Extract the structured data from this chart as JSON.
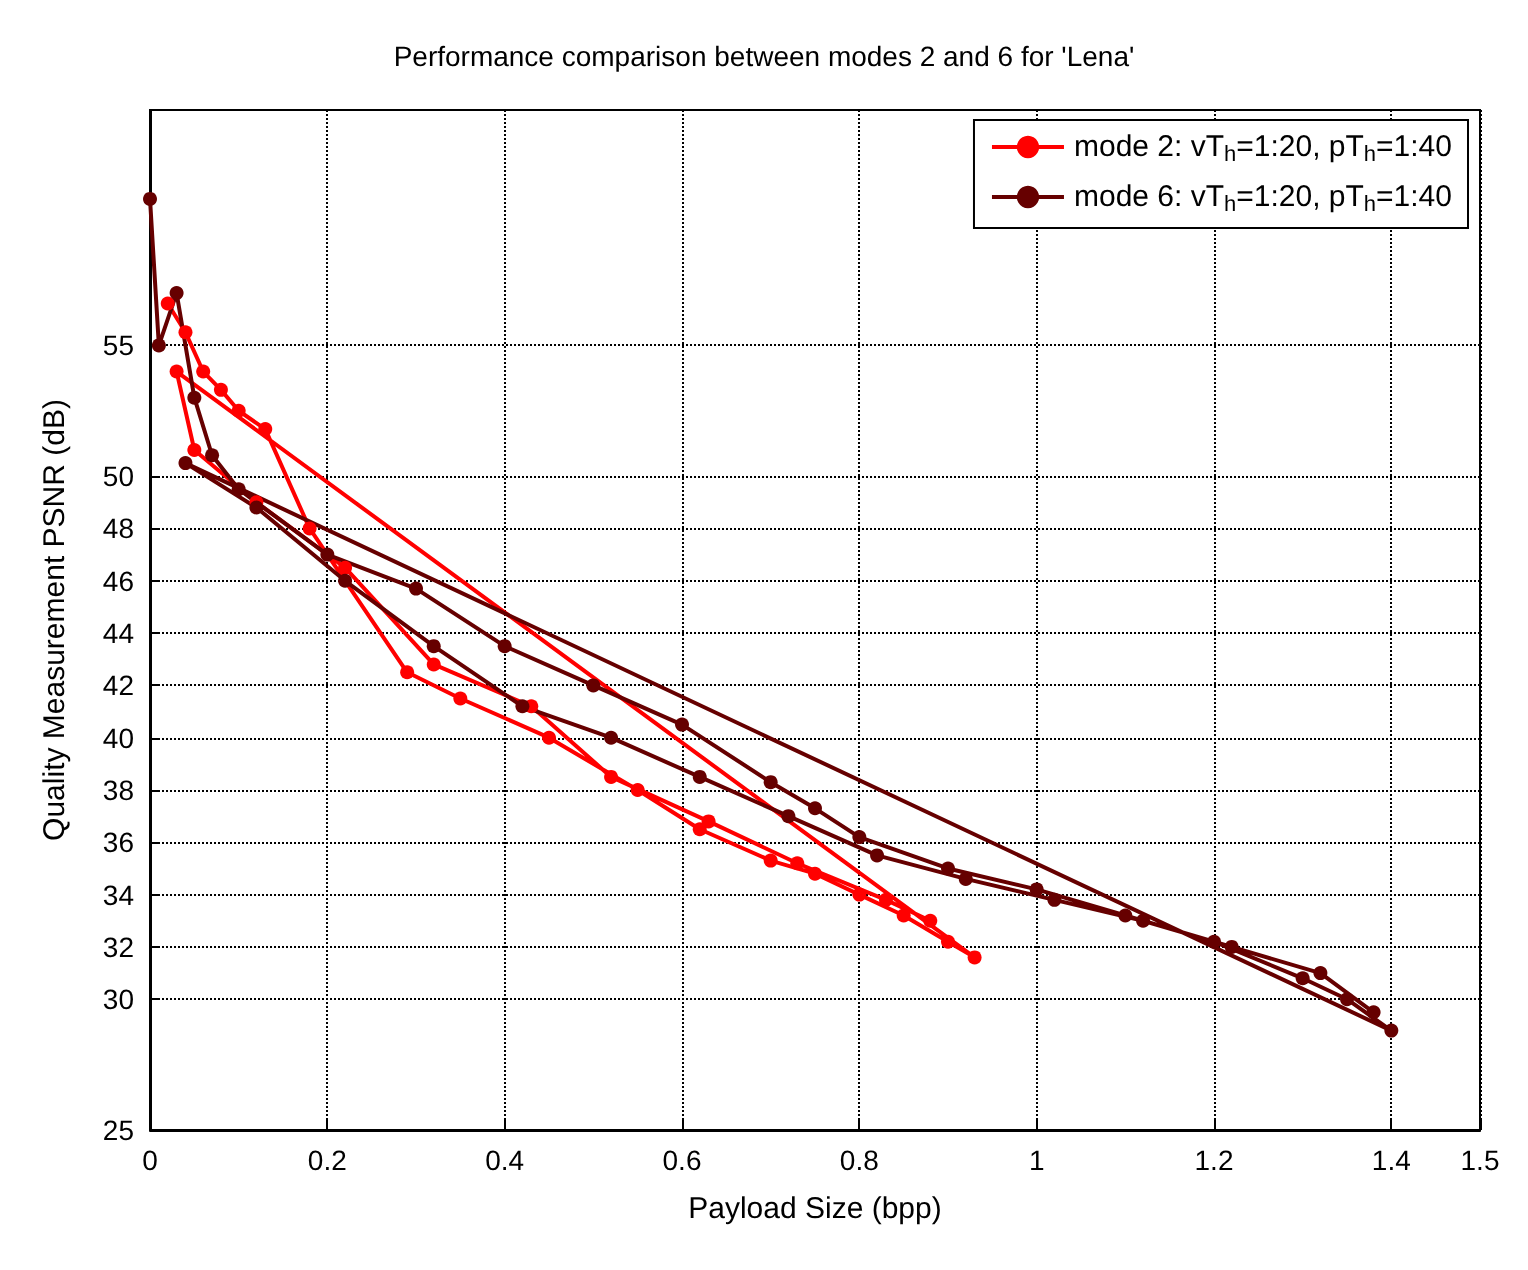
{
  "chart_data": {
    "type": "line",
    "title": "Performance comparison between modes 2 and 6 for 'Lena'",
    "xlabel": "Payload Size (bpp)",
    "ylabel": "Quality Measurement PSNR (dB)",
    "xlim": [
      0,
      1.5
    ],
    "xticks": [
      0,
      0.2,
      0.4,
      0.6,
      0.8,
      1,
      1.2,
      1.4,
      1.5
    ],
    "ylim": [
      25,
      64
    ],
    "yticks": [
      25,
      30,
      32,
      34,
      36,
      38,
      40,
      42,
      44,
      46,
      48,
      50,
      55
    ],
    "grid": true,
    "legend": "top right",
    "marker": "circle",
    "line_style": "solid",
    "series": [
      {
        "name": "mode 2: vT$_{h}$=1:20, pT$_{h}$=1:40",
        "color": "#ff0000",
        "x": [
          0.02,
          0.04,
          0.06,
          0.08,
          0.1,
          0.13,
          0.18,
          0.29,
          0.35,
          0.45,
          0.55,
          0.62,
          0.7,
          0.75,
          0.8,
          0.85,
          0.9,
          0.93,
          0.03,
          0.05,
          0.12,
          0.22,
          0.32,
          0.43,
          0.52,
          0.63,
          0.73,
          0.83,
          0.88
        ],
        "values": [
          56.6,
          55.5,
          54,
          53.3,
          52.5,
          51.8,
          48,
          42.5,
          41.5,
          40,
          38,
          36.5,
          35.3,
          34.8,
          34,
          33.2,
          32.2,
          31.6,
          54,
          51,
          49,
          46.5,
          42.8,
          41.2,
          38.5,
          36.8,
          35.2,
          33.8,
          33
        ]
      },
      {
        "name": "mode 6: vT$_{h}$=1:20, pT$_{h}$=1:40",
        "color": "#660000",
        "x": [
          0,
          0.01,
          0.03,
          0.05,
          0.07,
          0.1,
          0.2,
          0.3,
          0.4,
          0.5,
          0.6,
          0.7,
          0.75,
          0.8,
          0.9,
          1.0,
          1.1,
          1.2,
          1.3,
          1.35,
          1.4,
          0.04,
          0.12,
          0.22,
          0.32,
          0.42,
          0.52,
          0.62,
          0.72,
          0.82,
          0.92,
          1.02,
          1.12,
          1.22,
          1.32,
          1.38
        ],
        "values": [
          60.6,
          55,
          57,
          53,
          50.8,
          49.5,
          47,
          45.7,
          43.5,
          42,
          40.5,
          38.3,
          37.3,
          36.2,
          35,
          34.2,
          33.2,
          32.2,
          30.8,
          30,
          28.8,
          50.5,
          48.8,
          46,
          43.5,
          41.2,
          40,
          38.5,
          37,
          35.5,
          34.6,
          33.8,
          33,
          32,
          31,
          29.5
        ]
      }
    ]
  }
}
